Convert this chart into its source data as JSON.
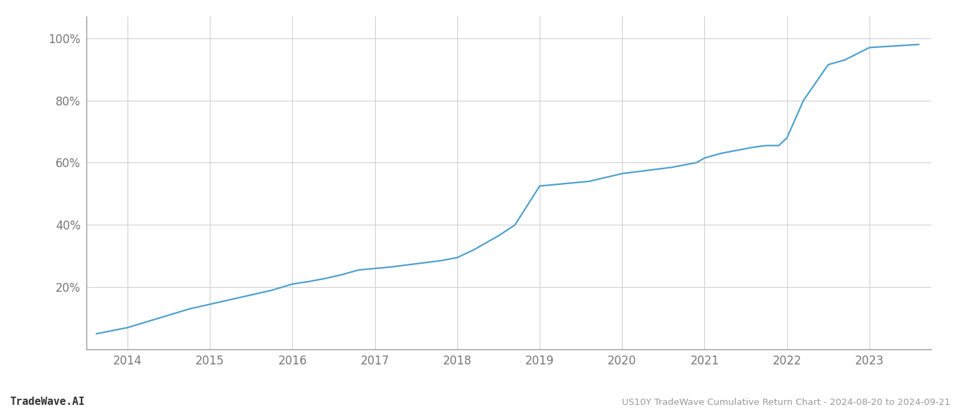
{
  "title": "US10Y TradeWave Cumulative Return Chart - 2024-08-20 to 2024-09-21",
  "watermark": "TradeWave.AI",
  "line_color": "#4d9fcc",
  "background_color": "#ffffff",
  "grid_color": "#d0d0d0",
  "x_values": [
    2013.62,
    2014.0,
    2014.25,
    2014.5,
    2014.75,
    2015.0,
    2015.25,
    2015.5,
    2015.75,
    2016.0,
    2016.2,
    2016.4,
    2016.6,
    2016.8,
    2017.0,
    2017.2,
    2017.5,
    2017.8,
    2018.0,
    2018.2,
    2018.5,
    2018.7,
    2019.0,
    2019.2,
    2019.4,
    2019.6,
    2020.0,
    2020.3,
    2020.6,
    2020.9,
    2021.0,
    2021.2,
    2021.5,
    2021.6,
    2021.75,
    2021.9,
    2022.0,
    2022.1,
    2022.2,
    2022.5,
    2022.7,
    2023.0,
    2023.3,
    2023.6
  ],
  "y_values": [
    5.0,
    7.0,
    9.0,
    11.0,
    13.0,
    14.5,
    16.0,
    17.5,
    19.0,
    21.0,
    21.8,
    22.8,
    24.0,
    25.5,
    26.0,
    26.5,
    27.5,
    28.5,
    29.5,
    32.0,
    36.5,
    40.0,
    52.5,
    53.0,
    53.5,
    54.0,
    56.5,
    57.5,
    58.5,
    60.0,
    61.5,
    63.0,
    64.5,
    65.0,
    65.5,
    65.5,
    68.0,
    74.0,
    80.0,
    91.5,
    93.0,
    97.0,
    97.5,
    98.0
  ],
  "xlim": [
    2013.5,
    2023.75
  ],
  "ylim": [
    0,
    107
  ],
  "yticks": [
    20,
    40,
    60,
    80,
    100
  ],
  "xticks": [
    2014,
    2015,
    2016,
    2017,
    2018,
    2019,
    2020,
    2021,
    2022,
    2023
  ],
  "line_width": 1.6,
  "title_fontsize": 9.5,
  "tick_fontsize": 12,
  "watermark_fontsize": 11
}
